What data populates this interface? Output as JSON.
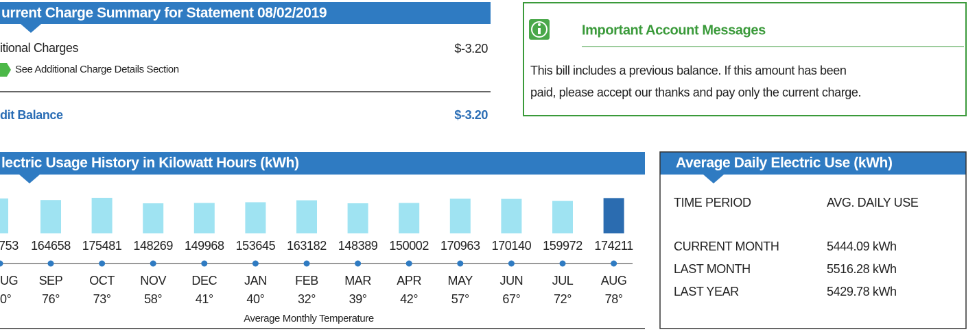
{
  "charge_summary": {
    "title": "urrent Charge Summary for Statement 08/02/2019",
    "item": {
      "label": "itional Charges",
      "amount": "$-3.20",
      "note": "See Additional Charge Details Section"
    },
    "total": {
      "label": "dit Balance",
      "amount": "$-3.20"
    }
  },
  "messages": {
    "title": "Important Account Messages",
    "lines": [
      "This bill includes a previous balance.  If this amount has been",
      "paid, please accept our thanks and pay only the current charge."
    ]
  },
  "usage": {
    "title": "lectric Usage History in Kilowatt Hours (kWh)",
    "partial_column": {
      "value": "753",
      "month": "UG",
      "temp": "0°"
    },
    "months": [
      "SEP",
      "OCT",
      "NOV",
      "DEC",
      "JAN",
      "FEB",
      "MAR",
      "APR",
      "MAY",
      "JUN",
      "JUL",
      "AUG"
    ],
    "values": [
      164658,
      175481,
      148269,
      149968,
      153645,
      163182,
      148389,
      150002,
      170963,
      170140,
      159972,
      174211
    ],
    "temps": [
      "76°",
      "73°",
      "58°",
      "41°",
      "40°",
      "32°",
      "39°",
      "42°",
      "57°",
      "67°",
      "72°",
      "78°"
    ],
    "caption": "Average Monthly Temperature",
    "bar_color": "#9fe3f2",
    "current_color": "#2b6cb0"
  },
  "average": {
    "title": "Average Daily Electric Use (kWh)",
    "headers": [
      "TIME PERIOD",
      "AVG. DAILY USE"
    ],
    "rows": [
      [
        "CURRENT MONTH",
        "5444.09 kWh"
      ],
      [
        "LAST MONTH",
        "5516.28 kWh"
      ],
      [
        "LAST YEAR",
        "5429.78 kWh"
      ]
    ]
  }
}
